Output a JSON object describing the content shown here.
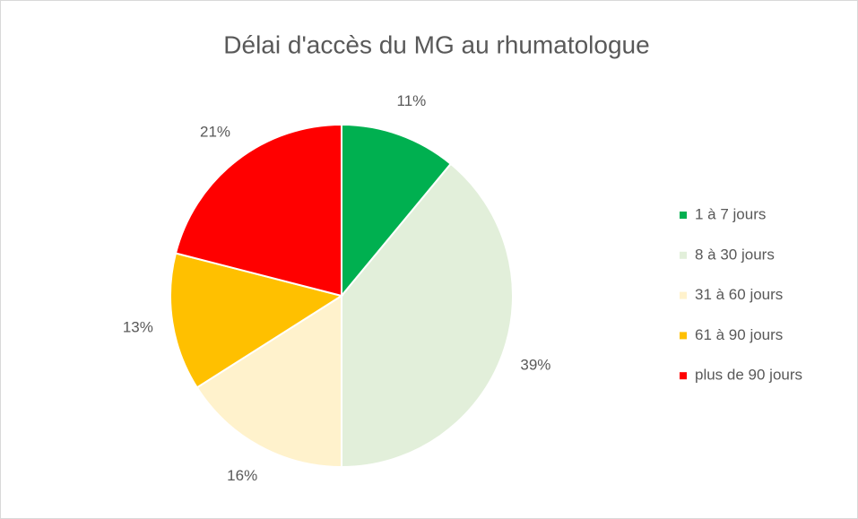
{
  "chart_data": {
    "type": "pie",
    "title": "Délai d'accès du MG au rhumatologue",
    "categories": [
      "1 à 7 jours",
      "8 à 30 jours",
      "31 à 60 jours",
      "61 à 90 jours",
      "plus de 90 jours"
    ],
    "values": [
      11,
      39,
      16,
      13,
      21
    ],
    "value_labels": [
      "11%",
      "39%",
      "16%",
      "13%",
      "21%"
    ],
    "colors": [
      "#00b050",
      "#e2efda",
      "#fff2cc",
      "#ffc000",
      "#ff0000"
    ],
    "legend": "right"
  }
}
